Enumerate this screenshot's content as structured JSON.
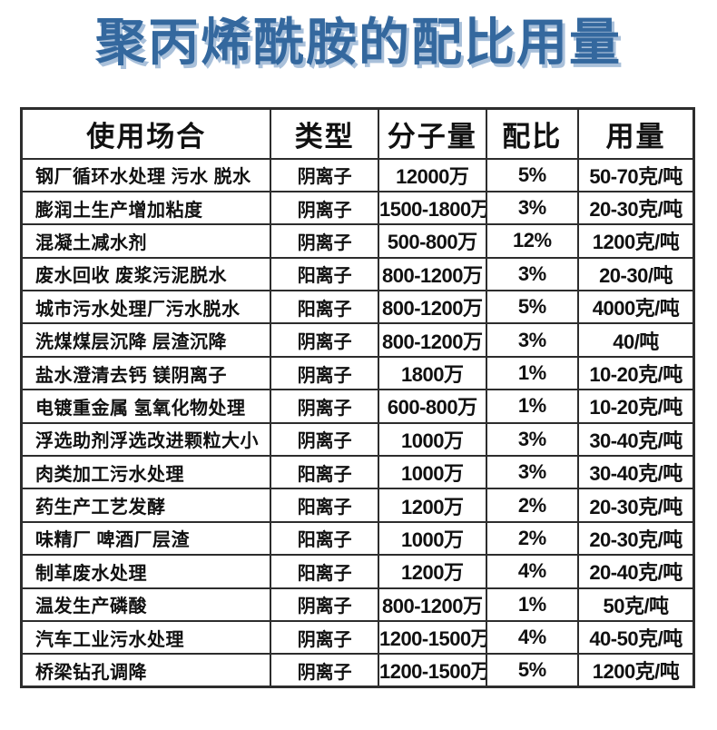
{
  "page": {
    "title": "聚丙烯酰胺的配比用量",
    "title_color": "#34689e",
    "title_shadow_color": "#a9c0da",
    "background_color": "#ffffff",
    "table_border_color": "#2d2d2d"
  },
  "table": {
    "headers": [
      "使用场合",
      "类型",
      "分子量",
      "配比",
      "用量"
    ],
    "rows": [
      [
        "钢厂循环水处理 污水 脱水",
        "阴离子",
        "12000万",
        "5%",
        "50-70克/吨"
      ],
      [
        "膨润土生产增加粘度",
        "阴离子",
        "1500-1800万",
        "3%",
        "20-30克/吨"
      ],
      [
        "混凝土减水剂",
        "阴离子",
        "500-800万",
        "12%",
        "1200克/吨"
      ],
      [
        "废水回收 废浆污泥脱水",
        "阳离子",
        "800-1200万",
        "3%",
        "20-30/吨"
      ],
      [
        "城市污水处理厂污水脱水",
        "阳离子",
        "800-1200万",
        "5%",
        "4000克/吨"
      ],
      [
        "洗煤煤层沉降 层渣沉降",
        "阴离子",
        "800-1200万",
        "3%",
        "40/吨"
      ],
      [
        "盐水澄清去钙 镁阴离子",
        "阴离子",
        "1800万",
        "1%",
        "10-20克/吨"
      ],
      [
        "电镀重金属 氢氧化物处理",
        "阴离子",
        "600-800万",
        "1%",
        "10-20克/吨"
      ],
      [
        "浮选助剂浮选改进颗粒大小",
        "阴离子",
        "1000万",
        "3%",
        "30-40克/吨"
      ],
      [
        "肉类加工污水处理",
        "阳离子",
        "1000万",
        "3%",
        "30-40克/吨"
      ],
      [
        "药生产工艺发酵",
        "阳离子",
        "1200万",
        "2%",
        "20-30克/吨"
      ],
      [
        "味精厂 啤酒厂层渣",
        "阳离子",
        "1000万",
        "2%",
        "20-30克/吨"
      ],
      [
        "制革废水处理",
        "阳离子",
        "1200万",
        "4%",
        "20-40克/吨"
      ],
      [
        "温发生产磷酸",
        "阴离子",
        "800-1200万",
        "1%",
        "50克/吨"
      ],
      [
        "汽车工业污水处理",
        "阴离子",
        "1200-1500万",
        "4%",
        "40-50克/吨"
      ],
      [
        "桥梁钻孔调降",
        "阴离子",
        "1200-1500万",
        "5%",
        "1200克/吨"
      ]
    ]
  }
}
